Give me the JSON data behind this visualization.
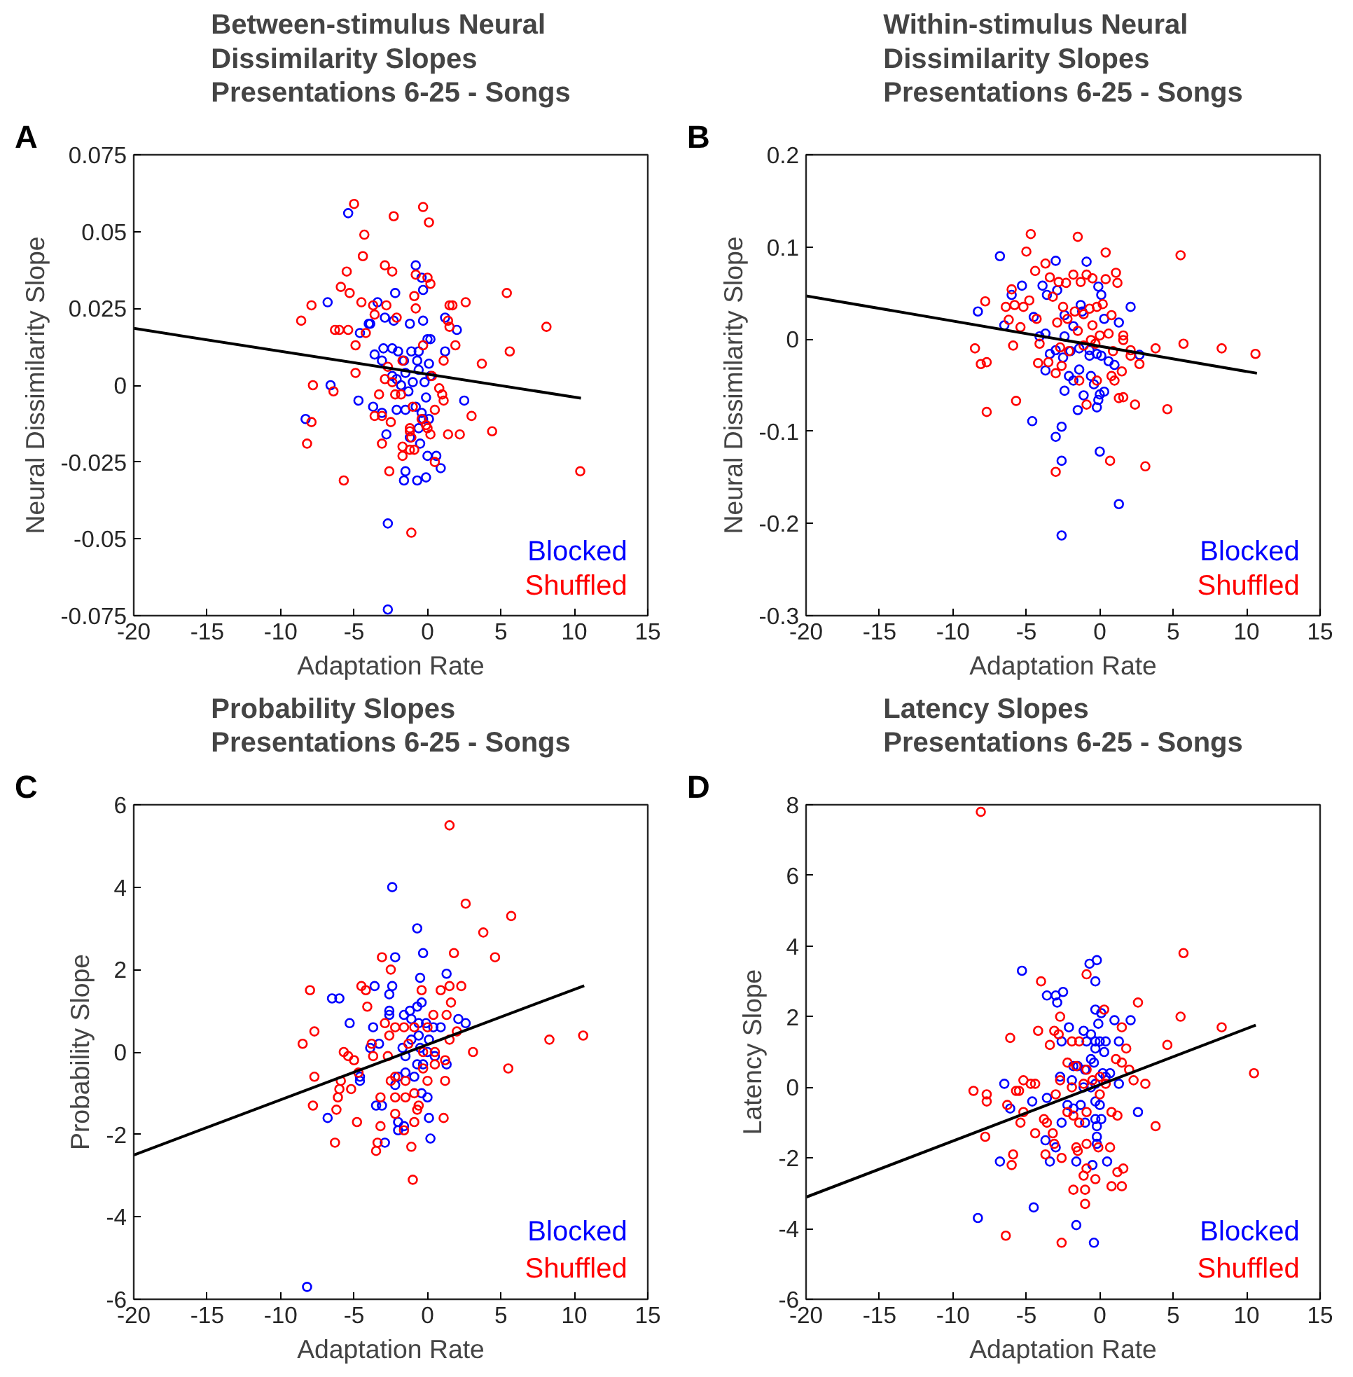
{
  "chart_data": [
    {
      "type": "scatter",
      "title": "Between-stimulus Neural\nDissimilarity Slopes\nPresentations 6-25 - Songs",
      "xlabel": "Adaptation Rate",
      "ylabel": "Neural Dissimilarity Slope",
      "annotations": [
        "A"
      ],
      "xlim": [
        -20,
        15
      ],
      "xticks": [
        -20,
        -15,
        -10,
        -5,
        0,
        5,
        10,
        15
      ],
      "ylim": [
        -0.075,
        0.075
      ],
      "yticks": [
        -0.075,
        -0.05,
        -0.025,
        0,
        0.025,
        0.05,
        0.075
      ],
      "marker": "circle",
      "legend": "bottom right",
      "series": [
        {
          "name": "Blocked",
          "color": "#0000ff",
          "x": [
            -5.4,
            -0.8,
            -0.4,
            -0.3,
            -6.8,
            -3.4,
            -2.2,
            -2.9,
            -2.3,
            -3.9,
            -4.0,
            -4.6,
            -1.2,
            -0.3,
            1.2,
            2.0,
            1.2,
            0.0,
            0.2,
            -0.6,
            -1.1,
            -2.0,
            -2.4,
            -3.0,
            -3.6,
            -3.1,
            -1.6,
            -0.7,
            0.1,
            0.2,
            -0.6,
            -1.5,
            -2.1,
            -2.4,
            -0.2,
            -6.6,
            -4.7,
            -3.7,
            -3.1,
            -2.1,
            -1.5,
            -0.8,
            -0.1,
            -0.4,
            -0.3,
            0.1,
            -0.5,
            0.0,
            0.6,
            0.9,
            -1.5,
            -0.7,
            -0.1,
            -1.6,
            -2.7,
            -2.7,
            -8.3,
            2.5,
            -2.8,
            -1.2,
            -0.6,
            -1.3,
            -1.8,
            -1.0
          ],
          "values": [
            0.056,
            0.039,
            0.035,
            0.031,
            0.027,
            0.027,
            0.03,
            0.022,
            0.021,
            0.02,
            0.02,
            0.017,
            0.02,
            0.021,
            0.022,
            0.018,
            0.011,
            0.015,
            0.015,
            0.011,
            0.011,
            0.011,
            0.012,
            0.012,
            0.01,
            0.008,
            0.008,
            0.008,
            0.007,
            0.003,
            0.005,
            0.004,
            0.002,
            0.003,
            0.001,
            0.0,
            -0.005,
            -0.007,
            -0.009,
            -0.008,
            -0.008,
            -0.007,
            -0.004,
            -0.009,
            -0.011,
            -0.011,
            -0.019,
            -0.023,
            -0.023,
            -0.027,
            -0.028,
            -0.031,
            -0.03,
            -0.031,
            -0.045,
            -0.073,
            -0.011,
            -0.005,
            -0.016,
            -0.017,
            -0.014,
            -0.002,
            0.0,
            0.001
          ]
        },
        {
          "name": "Shuffled",
          "color": "#ff0000",
          "x": [
            -5.0,
            -2.3,
            -0.3,
            0.1,
            -4.3,
            -4.4,
            -2.9,
            -2.4,
            -5.5,
            -5.9,
            -5.3,
            -7.9,
            -8.6,
            -4.5,
            -3.7,
            -2.8,
            -3.6,
            -6.3,
            -6.0,
            -5.4,
            -4.9,
            -4.2,
            -2.1,
            -0.9,
            -0.8,
            -0.8,
            0.0,
            0.2,
            1.5,
            1.7,
            2.6,
            1.4,
            1.5,
            1.9,
            1.1,
            3.7,
            5.6,
            5.4,
            8.1,
            -4.9,
            -7.8,
            -6.4,
            -2.7,
            -2.4,
            -2.9,
            -1.7,
            -0.3,
            0.3,
            0.8,
            1.0,
            1.1,
            3.0,
            4.4,
            2.2,
            1.4,
            0.5,
            -0.1,
            -0.4,
            -1.2,
            -1.2,
            -1.1,
            -1.7,
            -1.7,
            -1.2,
            0.0,
            0.2,
            0.5,
            -3.6,
            -3.1,
            -2.5,
            -3.1,
            -2.6,
            -5.7,
            -0.9,
            -7.9,
            -8.2,
            10.4,
            -1.1,
            -2.2,
            -1.8,
            -1.0,
            -3.3
          ],
          "values": [
            0.059,
            0.055,
            0.058,
            0.053,
            0.049,
            0.042,
            0.039,
            0.037,
            0.037,
            0.032,
            0.03,
            0.026,
            0.021,
            0.027,
            0.026,
            0.026,
            0.023,
            0.018,
            0.018,
            0.018,
            0.013,
            0.017,
            0.022,
            0.029,
            0.025,
            0.036,
            0.035,
            0.033,
            0.026,
            0.026,
            0.027,
            0.021,
            0.019,
            0.013,
            0.008,
            0.007,
            0.011,
            0.03,
            0.019,
            0.004,
            0.0,
            -0.002,
            0.006,
            0.001,
            0.002,
            0.008,
            0.013,
            0.003,
            -0.001,
            -0.003,
            -0.005,
            -0.01,
            -0.015,
            -0.016,
            -0.016,
            -0.008,
            -0.013,
            -0.011,
            -0.014,
            -0.015,
            -0.017,
            -0.02,
            -0.023,
            -0.021,
            -0.014,
            -0.016,
            -0.025,
            -0.01,
            -0.01,
            -0.012,
            -0.019,
            -0.028,
            -0.031,
            -0.021,
            -0.012,
            -0.019,
            -0.028,
            -0.048,
            -0.003,
            -0.003,
            -0.007,
            -0.003
          ]
        },
        {
          "type": "line",
          "marker": "none",
          "color": "#000000",
          "x": [
            -20,
            10.45
          ],
          "values": [
            0.0185,
            -0.0042
          ]
        }
      ]
    },
    {
      "type": "scatter",
      "title": "Within-stimulus Neural\nDissimilarity Slopes\nPresentations 6-25 - Songs",
      "xlabel": "Adaptation Rate",
      "ylabel": "Neural Dissimilarity Slope",
      "annotations": [
        "B"
      ],
      "xlim": [
        -20,
        15
      ],
      "xticks": [
        -20,
        -15,
        -10,
        -5,
        0,
        5,
        10,
        15
      ],
      "ylim": [
        -0.3,
        0.2
      ],
      "yticks": [
        -0.3,
        -0.2,
        -0.1,
        0,
        0.1,
        0.2
      ],
      "marker": "circle",
      "legend": "bottom right",
      "series": [
        {
          "name": "Blocked",
          "color": "#0000ff",
          "x": [
            -6.8,
            -5.3,
            -6.0,
            -8.3,
            -6.5,
            -4.5,
            -3.9,
            -3.6,
            -2.9,
            -3.0,
            -0.9,
            -0.1,
            0.1,
            -1.3,
            -2.4,
            -1.8,
            -1.2,
            0.3,
            1.3,
            2.1,
            -3.7,
            -3.4,
            -3.0,
            -2.5,
            -2.0,
            -1.4,
            -0.7,
            -0.2,
            -0.7,
            0.1,
            0.6,
            1.0,
            -3.7,
            -2.1,
            -2.4,
            -1.8,
            -1.4,
            -1.1,
            -0.6,
            -0.4,
            -0.1,
            0.3,
            -0.2,
            0.0,
            -1.5,
            -4.6,
            -2.6,
            -3.0,
            -2.6,
            0.0,
            1.3,
            -2.6,
            2.7,
            -2.4,
            -4.1
          ],
          "values": [
            0.09,
            0.058,
            0.048,
            0.03,
            0.015,
            0.024,
            0.058,
            0.048,
            0.053,
            0.085,
            0.084,
            0.057,
            0.048,
            0.037,
            0.026,
            0.014,
            0.03,
            0.022,
            0.018,
            0.035,
            0.006,
            -0.016,
            -0.012,
            -0.02,
            -0.013,
            -0.01,
            -0.012,
            -0.016,
            -0.018,
            -0.018,
            -0.024,
            -0.028,
            -0.034,
            -0.04,
            -0.056,
            -0.045,
            -0.033,
            -0.061,
            -0.04,
            -0.049,
            -0.066,
            -0.057,
            -0.074,
            -0.06,
            -0.077,
            -0.089,
            -0.095,
            -0.106,
            -0.132,
            -0.122,
            -0.179,
            -0.213,
            -0.017,
            0.003,
            0.003
          ]
        },
        {
          "name": "Shuffled",
          "color": "#ff0000",
          "x": [
            -4.7,
            -1.5,
            -5.0,
            0.4,
            5.5,
            -4.4,
            -3.7,
            -3.4,
            -2.8,
            -2.3,
            -1.8,
            -1.3,
            -0.9,
            -0.5,
            1.1,
            1.2,
            0.4,
            -6.0,
            -7.8,
            -6.4,
            -5.8,
            -5.2,
            -4.8,
            -4.3,
            -6.2,
            -5.4,
            -3.2,
            -2.5,
            -1.7,
            -1.1,
            -0.7,
            -0.2,
            0.2,
            0.8,
            -2.9,
            -2.2,
            -1.5,
            -0.5,
            0.0,
            0.6,
            1.6,
            1.6,
            -8.5,
            -8.1,
            -7.7,
            -5.9,
            -4.1,
            -2.7,
            -2.1,
            -1.1,
            -0.3,
            0.9,
            2.1,
            3.8,
            5.7,
            8.3,
            10.6,
            -4.2,
            -3.5,
            -3.0,
            -2.6,
            -1.4,
            -0.9,
            -0.2,
            0.8,
            1.0,
            1.5,
            2.7,
            1.3,
            1.6,
            2.4,
            4.6,
            -7.7,
            -5.7,
            0.7,
            3.1,
            -3.0,
            2.1,
            -0.6
          ],
          "values": [
            0.114,
            0.111,
            0.095,
            0.094,
            0.091,
            0.074,
            0.082,
            0.067,
            0.062,
            0.061,
            0.07,
            0.062,
            0.07,
            0.066,
            0.072,
            0.061,
            0.065,
            0.054,
            0.041,
            0.035,
            0.037,
            0.035,
            0.042,
            0.022,
            0.021,
            0.013,
            0.046,
            0.035,
            0.03,
            0.027,
            0.033,
            0.035,
            0.038,
            0.026,
            0.018,
            0.022,
            0.009,
            0.015,
            0.004,
            0.006,
            0.004,
            -0.001,
            -0.01,
            -0.027,
            -0.025,
            -0.007,
            -0.005,
            -0.009,
            -0.013,
            -0.007,
            -0.005,
            -0.013,
            -0.012,
            -0.01,
            -0.005,
            -0.01,
            -0.016,
            -0.026,
            -0.025,
            -0.037,
            -0.029,
            -0.045,
            -0.071,
            -0.045,
            -0.04,
            -0.045,
            -0.035,
            -0.027,
            -0.064,
            -0.063,
            -0.071,
            -0.076,
            -0.079,
            -0.067,
            -0.132,
            -0.138,
            -0.144,
            -0.018,
            -0.001
          ]
        },
        {
          "type": "line",
          "marker": "none",
          "color": "#000000",
          "x": [
            -20,
            10.7
          ],
          "values": [
            0.047,
            -0.037
          ]
        }
      ]
    },
    {
      "type": "scatter",
      "title": "Probability Slopes\nPresentations 6-25 - Songs",
      "xlabel": "Adaptation Rate",
      "ylabel": "Probability Slope",
      "annotations": [
        "C"
      ],
      "xlim": [
        -20,
        15
      ],
      "xticks": [
        -20,
        -15,
        -10,
        -5,
        0,
        5,
        10,
        15
      ],
      "ylim": [
        -6,
        6
      ],
      "yticks": [
        -6,
        -4,
        -2,
        0,
        2,
        4,
        6
      ],
      "marker": "circle",
      "legend": "bottom right",
      "series": [
        {
          "name": "Blocked",
          "color": "#0000ff",
          "x": [
            -2.4,
            -0.7,
            -0.3,
            -2.2,
            -0.5,
            1.3,
            -2.4,
            -3.6,
            -2.6,
            -6.5,
            -6.0,
            -5.3,
            -2.6,
            -2.6,
            -1.2,
            -0.7,
            -0.4,
            -1.6,
            -1.1,
            -0.6,
            -0.1,
            0.4,
            0.9,
            2.1,
            2.6,
            -3.7,
            -3.9,
            -3.3,
            -1.7,
            -1.1,
            -0.6,
            0.1,
            -0.5,
            0.0,
            0.5,
            1.3,
            -0.3,
            -0.7,
            -1.5,
            -4.6,
            -4.6,
            -2.0,
            -1.5,
            -0.9,
            -2.2,
            -0.4,
            0.0,
            -3.5,
            -3.1,
            -6.8,
            -2.0,
            -1.6,
            -2.0,
            0.1,
            0.2,
            -2.9,
            -8.2
          ],
          "values": [
            4.0,
            3.0,
            2.4,
            2.3,
            1.8,
            1.9,
            1.6,
            1.6,
            1.4,
            1.3,
            1.3,
            0.7,
            1.0,
            0.9,
            1.0,
            1.1,
            1.2,
            0.9,
            0.8,
            0.7,
            0.7,
            0.6,
            0.6,
            0.8,
            0.7,
            0.6,
            0.1,
            0.2,
            0.1,
            0.3,
            0.4,
            0.3,
            0.1,
            0.0,
            -0.1,
            -0.3,
            -0.3,
            -0.3,
            -0.1,
            -0.6,
            -0.7,
            -0.6,
            -0.5,
            -0.6,
            -0.8,
            -1.0,
            -1.1,
            -1.3,
            -1.3,
            -1.6,
            -1.7,
            -1.8,
            -1.9,
            -1.6,
            -2.1,
            -2.2,
            -5.7
          ]
        },
        {
          "name": "Shuffled",
          "color": "#ff0000",
          "x": [
            1.5,
            2.6,
            5.7,
            3.8,
            1.8,
            4.6,
            -3.1,
            -2.5,
            -8.0,
            -4.5,
            -4.2,
            -0.4,
            0.9,
            1.5,
            2.3,
            1.6,
            -4.1,
            -2.9,
            -2.2,
            -0.9,
            0.4,
            1.3,
            2.0,
            -7.7,
            -8.5,
            -3.8,
            -2.6,
            -1.6,
            0.0,
            -5.7,
            -5.4,
            -5.0,
            -4.7,
            -3.7,
            -2.7,
            -1.3,
            -0.3,
            0.5,
            1.2,
            1.5,
            3.1,
            8.3,
            10.6,
            5.5,
            -7.7,
            -5.9,
            -6.0,
            -6.1,
            -5.2,
            -7.8,
            -6.2,
            -4.8,
            -3.2,
            -2.5,
            -2.2,
            -1.5,
            -2.2,
            -1.5,
            -0.9,
            0.0,
            1.2,
            -0.6,
            -0.7,
            -0.9,
            -3.2,
            -2.2,
            1.1,
            -6.3,
            -3.4,
            -3.5,
            -1.1,
            -1.0,
            -1.6,
            -0.3,
            0.5
          ],
          "values": [
            5.5,
            3.6,
            3.3,
            2.9,
            2.4,
            2.3,
            2.3,
            2.0,
            1.5,
            1.6,
            1.5,
            1.5,
            1.5,
            1.6,
            1.6,
            1.2,
            1.1,
            0.7,
            0.6,
            0.6,
            0.9,
            0.9,
            0.5,
            0.5,
            0.2,
            0.2,
            0.4,
            0.6,
            0.6,
            0.0,
            -0.1,
            -0.2,
            -0.5,
            -0.1,
            -0.1,
            0.2,
            0.0,
            0.0,
            -0.2,
            0.3,
            0.0,
            0.3,
            0.4,
            -0.4,
            -0.6,
            -0.7,
            -0.9,
            -1.1,
            -0.9,
            -1.3,
            -1.4,
            -1.7,
            -1.1,
            -0.7,
            -0.6,
            -0.7,
            -1.1,
            -1.1,
            -1.0,
            -0.7,
            -0.7,
            -1.3,
            -1.4,
            -1.7,
            -1.8,
            -1.5,
            -1.6,
            -2.2,
            -2.2,
            -2.4,
            -2.3,
            -3.1,
            -1.9,
            -0.4,
            -0.3
          ]
        },
        {
          "type": "line",
          "marker": "none",
          "color": "#000000",
          "x": [
            -20,
            10.67
          ],
          "values": [
            -2.5,
            1.61
          ]
        }
      ]
    },
    {
      "type": "scatter",
      "title": "Latency Slopes\nPresentations 6-25 - Songs",
      "xlabel": "Adaptation Rate",
      "ylabel": "Latency Slope",
      "annotations": [
        "D"
      ],
      "xlim": [
        -20,
        15
      ],
      "xticks": [
        -20,
        -15,
        -10,
        -5,
        0,
        5,
        10,
        15
      ],
      "ylim": [
        -6,
        8
      ],
      "yticks": [
        -6,
        -4,
        -2,
        0,
        2,
        4,
        6,
        8
      ],
      "marker": "circle",
      "legend": "bottom right",
      "series": [
        {
          "name": "Blocked",
          "color": "#0000ff",
          "x": [
            -0.7,
            -0.2,
            -5.3,
            -0.3,
            -3.6,
            -3.0,
            -2.5,
            -2.9,
            -0.3,
            0.1,
            1.0,
            2.1,
            -0.1,
            -2.1,
            -1.1,
            -0.6,
            -2.6,
            -0.9,
            -0.3,
            0.0,
            0.4,
            0.3,
            1.3,
            -0.3,
            -0.6,
            -1.8,
            -1.5,
            -1.0,
            -0.4,
            0.2,
            0.4,
            1.3,
            0.7,
            -2.7,
            -1.9,
            -1.1,
            -0.6,
            -0.3,
            -6.5,
            -4.6,
            -3.6,
            -6.1,
            -2.2,
            -1.8,
            -1.3,
            -0.3,
            0.0,
            2.6,
            -0.3,
            0.1,
            -0.2,
            -2.6,
            -1.0,
            -0.2,
            -3.7,
            -3.0,
            -0.2,
            -6.8,
            -3.4,
            -1.6,
            -0.5,
            0.5,
            -4.5,
            -1.6,
            -0.4,
            -8.3
          ],
          "values": [
            3.5,
            3.6,
            3.3,
            3.0,
            2.6,
            2.6,
            2.7,
            2.4,
            2.2,
            2.1,
            1.9,
            1.9,
            1.8,
            1.7,
            1.6,
            1.5,
            1.3,
            1.3,
            1.3,
            1.3,
            1.3,
            1.0,
            1.3,
            1.1,
            0.8,
            0.6,
            0.6,
            0.5,
            0.7,
            0.4,
            0.3,
            0.1,
            0.4,
            0.3,
            0.2,
            0.0,
            0.0,
            0.1,
            0.1,
            -0.4,
            -0.3,
            -0.6,
            -0.5,
            -0.6,
            -0.5,
            -0.4,
            -0.5,
            -0.7,
            -0.9,
            -0.9,
            -1.1,
            -1.0,
            -1.0,
            -1.4,
            -1.5,
            -1.7,
            -1.6,
            -2.1,
            -2.1,
            -2.1,
            -2.2,
            -2.1,
            -3.4,
            -3.9,
            -4.4,
            -3.7
          ]
        },
        {
          "name": "Shuffled",
          "color": "#ff0000",
          "x": [
            -8.1,
            5.7,
            -0.9,
            -4.0,
            2.6,
            0.3,
            -2.7,
            5.5,
            8.3,
            1.5,
            -4.2,
            -3.1,
            -2.8,
            -6.1,
            -3.4,
            -1.9,
            -1.4,
            1.1,
            1.8,
            1.5,
            4.6,
            -2.2,
            -1.6,
            -0.9,
            0.0,
            2.0,
            2.3,
            3.1,
            10.5,
            -8.6,
            -7.7,
            -7.7,
            -5.7,
            -5.5,
            -5.2,
            -4.7,
            -4.4,
            -3.0,
            -2.7,
            -1.9,
            -1.1,
            -0.5,
            0.4,
            -5.2,
            -6.3,
            -5.4,
            -3.8,
            -3.6,
            -2.2,
            -1.8,
            -1.4,
            -0.9,
            0.0,
            0.8,
            1.2,
            3.8,
            -7.8,
            -4.4,
            -3.2,
            -3.1,
            -3.7,
            -5.9,
            -6.0,
            -2.6,
            -1.6,
            -1.5,
            -0.9,
            -0.1,
            0.7,
            1.2,
            1.6,
            -0.9,
            -1.1,
            -0.3,
            -1.0,
            -1.8,
            0.8,
            1.5,
            -1.0,
            -6.4,
            -2.6
          ],
          "values": [
            7.8,
            3.8,
            3.2,
            3.0,
            2.4,
            2.2,
            2.0,
            2.0,
            1.7,
            1.7,
            1.6,
            1.6,
            1.5,
            1.4,
            1.2,
            1.3,
            1.3,
            0.8,
            1.1,
            0.7,
            1.2,
            0.7,
            0.6,
            0.5,
            0.3,
            0.5,
            0.2,
            0.1,
            0.4,
            -0.1,
            -0.2,
            -0.4,
            -0.1,
            -0.1,
            0.2,
            0.1,
            0.1,
            -0.2,
            0.2,
            0.0,
            0.1,
            0.2,
            0.1,
            -0.7,
            -0.5,
            -1.0,
            -0.9,
            -1.0,
            -0.7,
            -0.8,
            -1.0,
            -0.7,
            -0.2,
            -0.7,
            -0.8,
            -1.1,
            -1.4,
            -1.3,
            -1.3,
            -1.6,
            -1.9,
            -1.9,
            -2.2,
            -2.0,
            -1.7,
            -1.8,
            -1.6,
            -1.7,
            -1.7,
            -2.4,
            -2.3,
            -2.3,
            -2.5,
            -2.6,
            -2.9,
            -2.9,
            -2.8,
            -2.8,
            -3.3,
            -4.2,
            -4.4
          ]
        },
        {
          "type": "line",
          "marker": "none",
          "color": "#000000",
          "x": [
            -20,
            10.62
          ],
          "values": [
            -3.11,
            1.76
          ]
        }
      ]
    }
  ]
}
